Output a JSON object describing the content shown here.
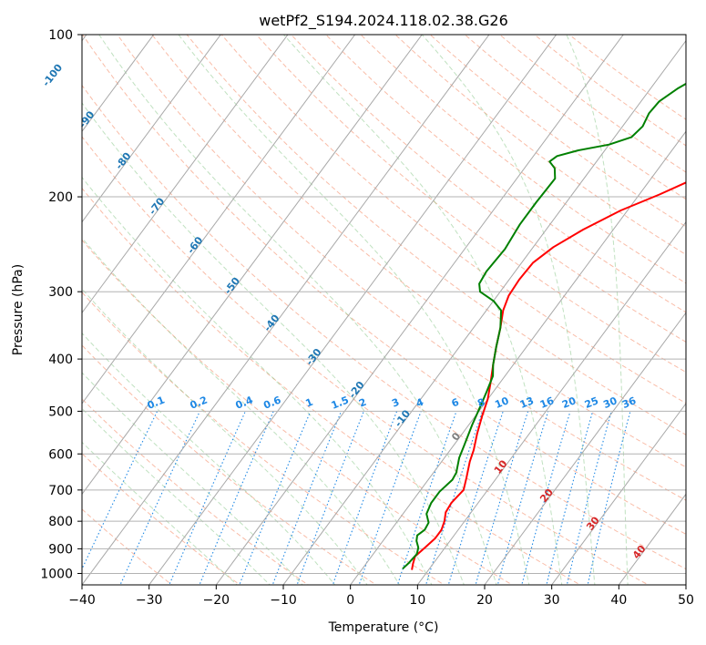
{
  "chart_data": {
    "type": "line",
    "title": "wetPf2_S194.2024.118.02.38.G26",
    "xlabel": "Temperature (°C)",
    "ylabel": "Pressure (hPa)",
    "xlim": [
      -40,
      50
    ],
    "ylim": [
      1050,
      100
    ],
    "y_scale": "log",
    "x_ticks": [
      -40,
      -30,
      -20,
      -10,
      0,
      10,
      20,
      30,
      40,
      50
    ],
    "x_tick_labels": [
      "−40",
      "−30",
      "−20",
      "−10",
      "0",
      "10",
      "20",
      "30",
      "40",
      "50"
    ],
    "y_ticks": [
      100,
      200,
      300,
      400,
      500,
      600,
      700,
      800,
      900,
      1000
    ],
    "y_tick_labels": [
      "100",
      "200",
      "300",
      "400",
      "500",
      "600",
      "700",
      "800",
      "900",
      "1000"
    ],
    "grid": true,
    "isotherm_labels": [
      {
        "text": "-100",
        "T": -100,
        "p": 120
      },
      {
        "text": "-90",
        "T": -90,
        "p": 145
      },
      {
        "text": "-80",
        "T": -80,
        "p": 173
      },
      {
        "text": "-70",
        "T": -70,
        "p": 210
      },
      {
        "text": "-60",
        "T": -60,
        "p": 248
      },
      {
        "text": "-50",
        "T": -50,
        "p": 295
      },
      {
        "text": "-40",
        "T": -40,
        "p": 346
      },
      {
        "text": "-30",
        "T": -30,
        "p": 400
      },
      {
        "text": "-20",
        "T": -20,
        "p": 460
      },
      {
        "text": "-10",
        "T": -10,
        "p": 520
      },
      {
        "text": "0",
        "T": 0,
        "p": 562
      },
      {
        "text": "10",
        "T": 10,
        "p": 640
      },
      {
        "text": "20",
        "T": 20,
        "p": 723
      },
      {
        "text": "30",
        "T": 30,
        "p": 815
      },
      {
        "text": "40",
        "T": 40,
        "p": 920
      }
    ],
    "mixing_ratio_labels": [
      "0.1",
      "0.2",
      "0.4",
      "0.6",
      "1",
      "1.5",
      "2",
      "3",
      "4",
      "6",
      "8",
      "10",
      "13",
      "16",
      "20",
      "25",
      "30",
      "36"
    ],
    "series": [
      {
        "color": "#ff0000",
        "points": [
          {
            "T": 7.5,
            "p": 985
          },
          {
            "T": 7.0,
            "p": 960
          },
          {
            "T": 6.5,
            "p": 930
          },
          {
            "T": 7.0,
            "p": 895
          },
          {
            "T": 7.5,
            "p": 860
          },
          {
            "T": 7.5,
            "p": 830
          },
          {
            "T": 7.0,
            "p": 800
          },
          {
            "T": 6.2,
            "p": 770
          },
          {
            "T": 6.0,
            "p": 740
          },
          {
            "T": 6.4,
            "p": 700
          },
          {
            "T": 5.5,
            "p": 665
          },
          {
            "T": 4.2,
            "p": 620
          },
          {
            "T": 3.5,
            "p": 590
          },
          {
            "T": 2.2,
            "p": 550
          },
          {
            "T": 1.0,
            "p": 510
          },
          {
            "T": 0.0,
            "p": 475
          },
          {
            "T": -1.3,
            "p": 445
          },
          {
            "T": -3.0,
            "p": 410
          },
          {
            "T": -4.5,
            "p": 380
          },
          {
            "T": -6.0,
            "p": 350
          },
          {
            "T": -7.5,
            "p": 325
          },
          {
            "T": -8.3,
            "p": 305
          },
          {
            "T": -8.5,
            "p": 285
          },
          {
            "T": -8.3,
            "p": 265
          },
          {
            "T": -7.0,
            "p": 248
          },
          {
            "T": -4.5,
            "p": 230
          },
          {
            "T": -1.0,
            "p": 212
          },
          {
            "T": 3.0,
            "p": 198
          },
          {
            "T": 6.5,
            "p": 185
          },
          {
            "T": 8.5,
            "p": 172
          },
          {
            "T": 10.5,
            "p": 160
          },
          {
            "T": 12.0,
            "p": 150
          },
          {
            "T": 13.5,
            "p": 143
          },
          {
            "T": 15.5,
            "p": 136
          },
          {
            "T": 17.5,
            "p": 127
          },
          {
            "T": 18.8,
            "p": 120
          },
          {
            "T": 19.8,
            "p": 113
          },
          {
            "T": 21.5,
            "p": 107
          },
          {
            "T": 23.0,
            "p": 100
          }
        ]
      },
      {
        "color": "#008000",
        "points": [
          {
            "T": 6.0,
            "p": 980
          },
          {
            "T": 6.3,
            "p": 955
          },
          {
            "T": 6.5,
            "p": 920
          },
          {
            "T": 6.0,
            "p": 895
          },
          {
            "T": 5.0,
            "p": 870
          },
          {
            "T": 4.5,
            "p": 850
          },
          {
            "T": 5.0,
            "p": 830
          },
          {
            "T": 4.8,
            "p": 805
          },
          {
            "T": 3.5,
            "p": 775
          },
          {
            "T": 3.0,
            "p": 740
          },
          {
            "T": 3.0,
            "p": 705
          },
          {
            "T": 3.6,
            "p": 670
          },
          {
            "T": 3.4,
            "p": 650
          },
          {
            "T": 2.2,
            "p": 610
          },
          {
            "T": 1.5,
            "p": 575
          },
          {
            "T": 0.5,
            "p": 530
          },
          {
            "T": -0.3,
            "p": 490
          },
          {
            "T": -1.0,
            "p": 460
          },
          {
            "T": -1.8,
            "p": 430
          },
          {
            "T": -3.0,
            "p": 410
          },
          {
            "T": -4.5,
            "p": 380
          },
          {
            "T": -6.0,
            "p": 350
          },
          {
            "T": -7.8,
            "p": 325
          },
          {
            "T": -10.0,
            "p": 312
          },
          {
            "T": -13.0,
            "p": 300
          },
          {
            "T": -14.0,
            "p": 290
          },
          {
            "T": -14.3,
            "p": 275
          },
          {
            "T": -14.0,
            "p": 250
          },
          {
            "T": -14.5,
            "p": 225
          },
          {
            "T": -14.5,
            "p": 205
          },
          {
            "T": -14.3,
            "p": 185
          },
          {
            "T": -15.5,
            "p": 177
          },
          {
            "T": -17.0,
            "p": 172
          },
          {
            "T": -16.5,
            "p": 168
          },
          {
            "T": -14.0,
            "p": 164
          },
          {
            "T": -10.0,
            "p": 160
          },
          {
            "T": -7.5,
            "p": 155
          },
          {
            "T": -7.0,
            "p": 148
          },
          {
            "T": -7.5,
            "p": 140
          },
          {
            "T": -7.3,
            "p": 133
          },
          {
            "T": -6.0,
            "p": 126
          },
          {
            "T": -4.0,
            "p": 119
          },
          {
            "T": -3.0,
            "p": 113
          },
          {
            "T": -2.0,
            "p": 105
          },
          {
            "T": -0.5,
            "p": 100
          }
        ]
      }
    ]
  }
}
